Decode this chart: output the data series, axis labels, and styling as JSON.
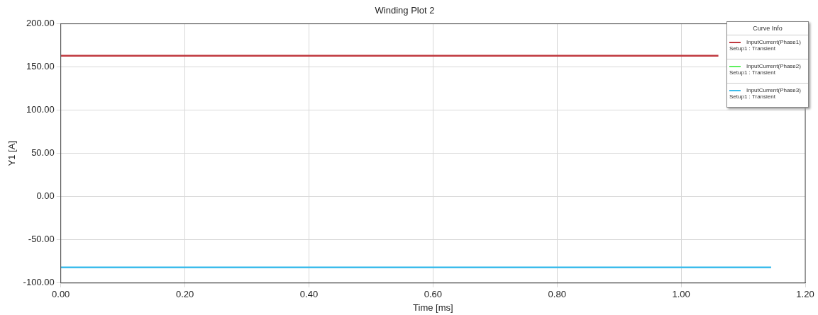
{
  "chart_data": {
    "type": "line",
    "title": "Winding Plot 2",
    "xlabel": "Time [ms]",
    "ylabel": "Y1 [A]",
    "legend_title": "Curve Info",
    "annotations": [
      "Setup1 : Transient",
      "Setup1 : Transient",
      "Setup1 : Transient"
    ],
    "x": [
      0,
      1.145
    ],
    "series": [
      {
        "name": "InputCurrent(Phase1)",
        "color": "#c0393f",
        "x": [
          0,
          1.06
        ],
        "values": [
          163,
          163
        ]
      },
      {
        "name": "InputCurrent(Phase2)",
        "color": "#5ef05e",
        "values": [
          null,
          null
        ]
      },
      {
        "name": "InputCurrent(Phase3)",
        "color": "#3cbcec",
        "values": [
          -82,
          -82
        ]
      }
    ],
    "xlim": [
      0,
      1.2
    ],
    "xticks": [
      {
        "value": 0,
        "label": "0.00"
      },
      {
        "value": 0.2,
        "label": "0.20"
      },
      {
        "value": 0.4,
        "label": "0.40"
      },
      {
        "value": 0.6,
        "label": "0.60"
      },
      {
        "value": 0.8,
        "label": "0.80"
      },
      {
        "value": 1,
        "label": "1.00"
      },
      {
        "value": 1.2,
        "label": "1.20"
      }
    ],
    "ylim": [
      -100,
      200
    ],
    "yticks": [
      {
        "value": -100,
        "label": "-100.00"
      },
      {
        "value": -50,
        "label": "-50.00"
      },
      {
        "value": 0,
        "label": "0.00"
      },
      {
        "value": 50,
        "label": "50.00"
      },
      {
        "value": 100,
        "label": "100.00"
      },
      {
        "value": 150,
        "label": "150.00"
      },
      {
        "value": 200,
        "label": "200.00"
      }
    ],
    "grid": true,
    "legend": "top right",
    "marker": "none"
  }
}
